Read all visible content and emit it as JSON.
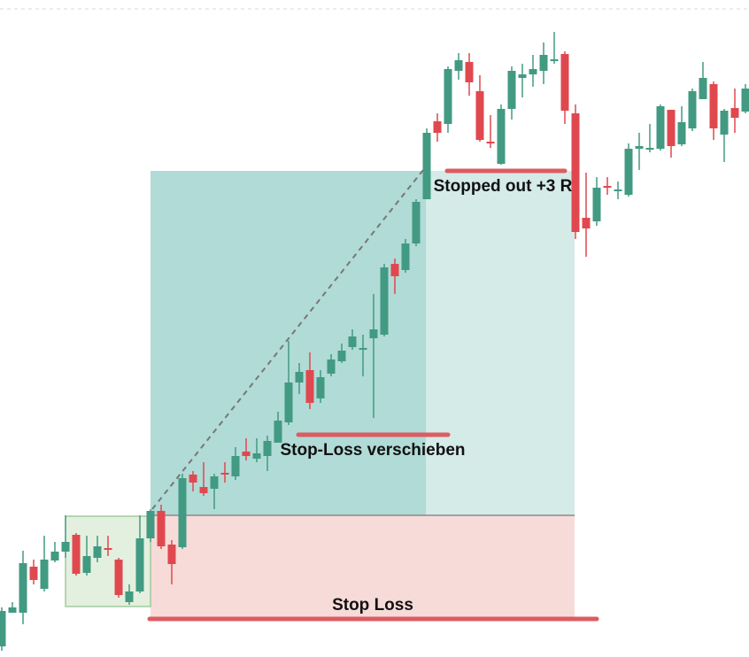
{
  "chart_data": {
    "type": "candlestick",
    "annotations": [
      "Stopped out +3 R",
      "Stop-Loss verschieben",
      "Stop Loss"
    ],
    "up_color": "#429a82",
    "down_color": "#e0484f",
    "ylim": [
      0,
      742
    ],
    "open": [
      12,
      50,
      50,
      102,
      77,
      109,
      119,
      138,
      95,
      112,
      123,
      110,
      62,
      74,
      134,
      165,
      127,
      124,
      206,
      192,
      190,
      208,
      204,
      232,
      224,
      227,
      242,
      265,
      310,
      324,
      292,
      320,
      334,
      350,
      347,
      360,
      364,
      444,
      437,
      467,
      517,
      605,
      602,
      662,
      672,
      639,
      582,
      557,
      619,
      654,
      658,
      662,
      673,
      681,
      614,
      496,
      492,
      532,
      526,
      522,
      574,
      573,
      574,
      618,
      579,
      597,
      630,
      647,
      590,
      620,
      616
    ],
    "high": [
      56,
      62,
      120,
      110,
      137,
      130,
      160,
      140,
      137,
      137,
      137,
      112,
      82,
      160,
      167,
      172,
      132,
      207,
      210,
      220,
      207,
      220,
      237,
      247,
      247,
      250,
      277,
      357,
      332,
      344,
      324,
      342,
      354,
      370,
      364,
      410,
      444,
      450,
      472,
      517,
      597,
      614,
      667,
      682,
      682,
      657,
      612,
      624,
      667,
      670,
      680,
      694,
      706,
      684,
      624,
      547,
      542,
      542,
      537,
      580,
      592,
      602,
      624,
      618,
      622,
      642,
      672,
      650,
      619,
      642,
      647
    ],
    "low": [
      7,
      50,
      37,
      82,
      74,
      107,
      112,
      92,
      92,
      107,
      114,
      67,
      59,
      72,
      130,
      122,
      82,
      122,
      187,
      182,
      167,
      197,
      200,
      222,
      220,
      210,
      242,
      262,
      297,
      280,
      287,
      317,
      332,
      347,
      317,
      270,
      362,
      410,
      434,
      464,
      517,
      582,
      592,
      652,
      634,
      582,
      575,
      556,
      607,
      632,
      644,
      647,
      670,
      602,
      472,
      452,
      487,
      522,
      517,
      520,
      550,
      570,
      572,
      564,
      577,
      594,
      630,
      584,
      559,
      592,
      614
    ],
    "close": [
      52,
      56,
      106,
      87,
      110,
      119,
      130,
      94,
      114,
      125,
      121,
      70,
      74,
      134,
      165,
      125,
      105,
      202,
      197,
      185,
      204,
      206,
      227,
      227,
      230,
      244,
      267,
      310,
      322,
      287,
      316,
      336,
      346,
      362,
      349,
      370,
      440,
      430,
      467,
      514,
      592,
      592,
      664,
      674,
      649,
      584,
      580,
      619,
      662,
      658,
      664,
      680,
      675,
      617,
      480,
      484,
      530,
      530,
      528,
      574,
      577,
      575,
      622,
      577,
      604,
      639,
      654,
      597,
      617,
      609,
      642
    ]
  }
}
